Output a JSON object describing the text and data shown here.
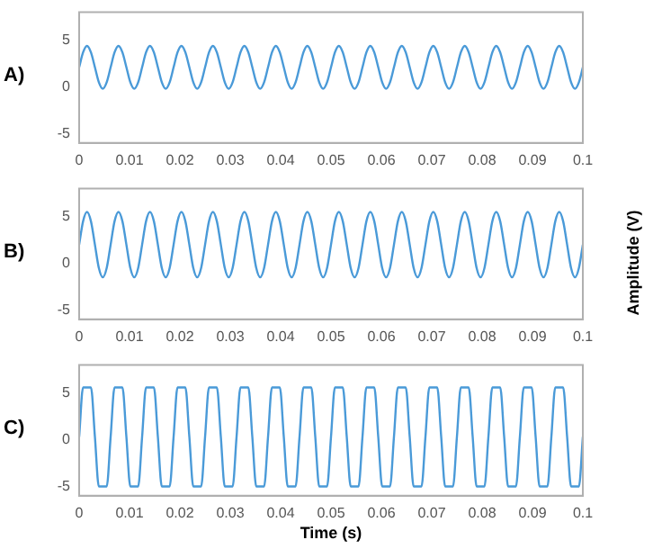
{
  "chart_data": [
    {
      "type": "line",
      "title": "A)",
      "x": [
        0,
        0.00078,
        0.00156,
        0.00234,
        0.00313,
        0.00391,
        0.00469,
        0.00547,
        0.00625,
        0.00703,
        0.00781,
        0.00859,
        0.00938,
        0.01016,
        0.01094,
        0.01172,
        0.0125,
        0.01328,
        0.01406,
        0.01484,
        0.01563,
        0.01641,
        0.01719,
        0.01797,
        0.01875,
        0.01953,
        0.02031,
        0.02109,
        0.02188,
        0.02266,
        0.02344,
        0.02422,
        0.025,
        0.02578,
        0.02656,
        0.02734,
        0.02813,
        0.02891,
        0.02969,
        0.03047,
        0.03125,
        0.03203,
        0.03281,
        0.03359,
        0.03438,
        0.03516,
        0.03594,
        0.03672,
        0.0375,
        0.03828,
        0.03906,
        0.03984,
        0.04063,
        0.04141,
        0.04219,
        0.04297,
        0.04375,
        0.04453,
        0.04531,
        0.04609,
        0.04688,
        0.04766,
        0.04844,
        0.04922,
        0.05,
        0.05078,
        0.05156,
        0.05234,
        0.05313,
        0.05391,
        0.05469,
        0.05547,
        0.05625,
        0.05703,
        0.05781,
        0.05859,
        0.05938,
        0.06016,
        0.06094,
        0.06172,
        0.0625,
        0.06328,
        0.06406,
        0.06484,
        0.06563,
        0.06641,
        0.06719,
        0.06797,
        0.06875,
        0.06953,
        0.07031,
        0.07109,
        0.07188,
        0.07266,
        0.07344,
        0.07422,
        0.075,
        0.07578,
        0.07656,
        0.07734,
        0.07813,
        0.07891,
        0.07969,
        0.08047,
        0.08125,
        0.08203,
        0.08281,
        0.08359,
        0.08438,
        0.08516,
        0.08594,
        0.08672,
        0.0875,
        0.08828,
        0.08906,
        0.08984,
        0.09063,
        0.09141,
        0.09219,
        0.09297,
        0.09375,
        0.09453,
        0.09531,
        0.09609,
        0.09688,
        0.09766,
        0.09844,
        0.09922,
        0.1
      ],
      "series": [
        {
          "color": "#4a9ad8",
          "values": [
            2.1,
            3.7,
            4.4,
            3.7,
            2.1,
            0.5,
            -0.2,
            0.5,
            2.1,
            3.7,
            4.4,
            3.7,
            2.1,
            0.5,
            -0.2,
            0.5,
            2.1,
            3.7,
            4.4,
            3.7,
            2.1,
            0.5,
            -0.2,
            0.5,
            2.1,
            3.7,
            4.4,
            3.7,
            2.1,
            0.5,
            -0.2,
            0.5,
            2.1,
            3.7,
            4.4,
            3.7,
            2.1,
            0.5,
            -0.2,
            0.5,
            2.1,
            3.7,
            4.4,
            3.7,
            2.1,
            0.5,
            -0.2,
            0.5,
            2.1,
            3.7,
            4.4,
            3.7,
            2.1,
            0.5,
            -0.2,
            0.5,
            2.1,
            3.7,
            4.4,
            3.7,
            2.1,
            0.5,
            -0.2,
            0.5,
            2.1,
            3.7,
            4.4,
            3.7,
            2.1,
            0.5,
            -0.2,
            0.5,
            2.1,
            3.7,
            4.4,
            3.7,
            2.1,
            0.5,
            -0.2,
            0.5,
            2.1,
            3.7,
            4.4,
            3.7,
            2.1,
            0.5,
            -0.2,
            0.5,
            2.1,
            3.7,
            4.4,
            3.7,
            2.1,
            0.5,
            -0.2,
            0.5,
            2.1,
            3.7,
            4.4,
            3.7,
            2.1,
            0.5,
            -0.2,
            0.5,
            2.1,
            3.7,
            4.4,
            3.7,
            2.1,
            0.5,
            -0.2,
            0.5,
            2.1,
            3.7,
            4.4,
            3.7,
            2.1,
            0.5,
            -0.2,
            0.5,
            2.1,
            3.7,
            4.4,
            3.7,
            2.1,
            0.5,
            -0.2,
            0.5,
            2.1
          ]
        }
      ],
      "xlim": [
        0,
        0.1
      ],
      "xticks": [
        0,
        0.01,
        0.02,
        0.03,
        0.04,
        0.05,
        0.06,
        0.07,
        0.08,
        0.09,
        0.1
      ],
      "ylim": [
        -6,
        8
      ],
      "yticks": [
        -5,
        0,
        5
      ],
      "marker": "none",
      "line_style": "solid"
    },
    {
      "type": "line",
      "title": "B)",
      "ylabel": "Amplitude (V)",
      "x": [
        0,
        0.00078,
        0.00156,
        0.00234,
        0.00313,
        0.00391,
        0.00469,
        0.00547,
        0.00625,
        0.00703,
        0.00781,
        0.00859,
        0.00938,
        0.01016,
        0.01094,
        0.01172,
        0.0125,
        0.01328,
        0.01406,
        0.01484,
        0.01563,
        0.01641,
        0.01719,
        0.01797,
        0.01875,
        0.01953,
        0.02031,
        0.02109,
        0.02188,
        0.02266,
        0.02344,
        0.02422,
        0.025,
        0.02578,
        0.02656,
        0.02734,
        0.02813,
        0.02891,
        0.02969,
        0.03047,
        0.03125,
        0.03203,
        0.03281,
        0.03359,
        0.03438,
        0.03516,
        0.03594,
        0.03672,
        0.0375,
        0.03828,
        0.03906,
        0.03984,
        0.04063,
        0.04141,
        0.04219,
        0.04297,
        0.04375,
        0.04453,
        0.04531,
        0.04609,
        0.04688,
        0.04766,
        0.04844,
        0.04922,
        0.05,
        0.05078,
        0.05156,
        0.05234,
        0.05313,
        0.05391,
        0.05469,
        0.05547,
        0.05625,
        0.05703,
        0.05781,
        0.05859,
        0.05938,
        0.06016,
        0.06094,
        0.06172,
        0.0625,
        0.06328,
        0.06406,
        0.06484,
        0.06563,
        0.06641,
        0.06719,
        0.06797,
        0.06875,
        0.06953,
        0.07031,
        0.07109,
        0.07188,
        0.07266,
        0.07344,
        0.07422,
        0.075,
        0.07578,
        0.07656,
        0.07734,
        0.07813,
        0.07891,
        0.07969,
        0.08047,
        0.08125,
        0.08203,
        0.08281,
        0.08359,
        0.08438,
        0.08516,
        0.08594,
        0.08672,
        0.0875,
        0.08828,
        0.08906,
        0.08984,
        0.09063,
        0.09141,
        0.09219,
        0.09297,
        0.09375,
        0.09453,
        0.09531,
        0.09609,
        0.09688,
        0.09766,
        0.09844,
        0.09922,
        0.1
      ],
      "series": [
        {
          "color": "#4a9ad8",
          "values": [
            2,
            4.5,
            5.5,
            4.5,
            2,
            -0.5,
            -1.5,
            -0.5,
            2,
            4.5,
            5.5,
            4.5,
            2,
            -0.5,
            -1.5,
            -0.5,
            2,
            4.5,
            5.5,
            4.5,
            2,
            -0.5,
            -1.5,
            -0.5,
            2,
            4.5,
            5.5,
            4.5,
            2,
            -0.5,
            -1.5,
            -0.5,
            2,
            4.5,
            5.5,
            4.5,
            2,
            -0.5,
            -1.5,
            -0.5,
            2,
            4.5,
            5.5,
            4.5,
            2,
            -0.5,
            -1.5,
            -0.5,
            2,
            4.5,
            5.5,
            4.5,
            2,
            -0.5,
            -1.5,
            -0.5,
            2,
            4.5,
            5.5,
            4.5,
            2,
            -0.5,
            -1.5,
            -0.5,
            2,
            4.5,
            5.5,
            4.5,
            2,
            -0.5,
            -1.5,
            -0.5,
            2,
            4.5,
            5.5,
            4.5,
            2,
            -0.5,
            -1.5,
            -0.5,
            2,
            4.5,
            5.5,
            4.5,
            2,
            -0.5,
            -1.5,
            -0.5,
            2,
            4.5,
            5.5,
            4.5,
            2,
            -0.5,
            -1.5,
            -0.5,
            2,
            4.5,
            5.5,
            4.5,
            2,
            -0.5,
            -1.5,
            -0.5,
            2,
            4.5,
            5.5,
            4.5,
            2,
            -0.5,
            -1.5,
            -0.5,
            2,
            4.5,
            5.5,
            4.5,
            2,
            -0.5,
            -1.5,
            -0.5,
            2,
            4.5,
            5.5,
            4.5,
            2,
            -0.5,
            -1.5,
            -0.5,
            2
          ]
        }
      ],
      "xlim": [
        0,
        0.1
      ],
      "xticks": [
        0,
        0.01,
        0.02,
        0.03,
        0.04,
        0.05,
        0.06,
        0.07,
        0.08,
        0.09,
        0.1
      ],
      "ylim": [
        -6,
        8
      ],
      "yticks": [
        -5,
        0,
        5
      ],
      "marker": "none",
      "line_style": "solid"
    },
    {
      "type": "line",
      "title": "C)",
      "xlabel": "Time (s)",
      "x": [
        0,
        0.00078,
        0.00156,
        0.00234,
        0.00313,
        0.00391,
        0.00469,
        0.00547,
        0.00625,
        0.00703,
        0.00781,
        0.00859,
        0.00938,
        0.01016,
        0.01094,
        0.01172,
        0.0125,
        0.01328,
        0.01406,
        0.01484,
        0.01563,
        0.01641,
        0.01719,
        0.01797,
        0.01875,
        0.01953,
        0.02031,
        0.02109,
        0.02188,
        0.02266,
        0.02344,
        0.02422,
        0.025,
        0.02578,
        0.02656,
        0.02734,
        0.02813,
        0.02891,
        0.02969,
        0.03047,
        0.03125,
        0.03203,
        0.03281,
        0.03359,
        0.03438,
        0.03516,
        0.03594,
        0.03672,
        0.0375,
        0.03828,
        0.03906,
        0.03984,
        0.04063,
        0.04141,
        0.04219,
        0.04297,
        0.04375,
        0.04453,
        0.04531,
        0.04609,
        0.04688,
        0.04766,
        0.04844,
        0.04922,
        0.05,
        0.05078,
        0.05156,
        0.05234,
        0.05313,
        0.05391,
        0.05469,
        0.05547,
        0.05625,
        0.05703,
        0.05781,
        0.05859,
        0.05938,
        0.06016,
        0.06094,
        0.06172,
        0.0625,
        0.06328,
        0.06406,
        0.06484,
        0.06563,
        0.06641,
        0.06719,
        0.06797,
        0.06875,
        0.06953,
        0.07031,
        0.07109,
        0.07188,
        0.07266,
        0.07344,
        0.07422,
        0.075,
        0.07578,
        0.07656,
        0.07734,
        0.07813,
        0.07891,
        0.07969,
        0.08047,
        0.08125,
        0.08203,
        0.08281,
        0.08359,
        0.08438,
        0.08516,
        0.08594,
        0.08672,
        0.0875,
        0.08828,
        0.08906,
        0.08984,
        0.09063,
        0.09141,
        0.09219,
        0.09297,
        0.09375,
        0.09453,
        0.09531,
        0.09609,
        0.09688,
        0.09766,
        0.09844,
        0.09922,
        0.1
      ],
      "series": [
        {
          "color": "#4a9ad8",
          "values": [
            0.3,
            5.6,
            5.6,
            5.6,
            0.3,
            -5,
            -5,
            -5,
            0.3,
            5.6,
            5.6,
            5.6,
            0.3,
            -5,
            -5,
            -5,
            0.3,
            5.6,
            5.6,
            5.6,
            0.3,
            -5,
            -5,
            -5,
            0.3,
            5.6,
            5.6,
            5.6,
            0.3,
            -5,
            -5,
            -5,
            0.3,
            5.6,
            5.6,
            5.6,
            0.3,
            -5,
            -5,
            -5,
            0.3,
            5.6,
            5.6,
            5.6,
            0.3,
            -5,
            -5,
            -5,
            0.3,
            5.6,
            5.6,
            5.6,
            0.3,
            -5,
            -5,
            -5,
            0.3,
            5.6,
            5.6,
            5.6,
            0.3,
            -5,
            -5,
            -5,
            0.3,
            5.6,
            5.6,
            5.6,
            0.3,
            -5,
            -5,
            -5,
            0.3,
            5.6,
            5.6,
            5.6,
            0.3,
            -5,
            -5,
            -5,
            0.3,
            5.6,
            5.6,
            5.6,
            0.3,
            -5,
            -5,
            -5,
            0.3,
            5.6,
            5.6,
            5.6,
            0.3,
            -5,
            -5,
            -5,
            0.3,
            5.6,
            5.6,
            5.6,
            0.3,
            -5,
            -5,
            -5,
            0.3,
            5.6,
            5.6,
            5.6,
            0.3,
            -5,
            -5,
            -5,
            0.3,
            5.6,
            5.6,
            5.6,
            0.3,
            -5,
            -5,
            -5,
            0.3,
            5.6,
            5.6,
            5.6,
            0.3,
            -5,
            -5,
            -5,
            0.3
          ]
        }
      ],
      "xlim": [
        0,
        0.1
      ],
      "xticks": [
        0,
        0.01,
        0.02,
        0.03,
        0.04,
        0.05,
        0.06,
        0.07,
        0.08,
        0.09,
        0.1
      ],
      "ylim": [
        -6,
        8
      ],
      "yticks": [
        -5,
        0,
        5
      ],
      "marker": "none",
      "line_style": "solid"
    }
  ]
}
